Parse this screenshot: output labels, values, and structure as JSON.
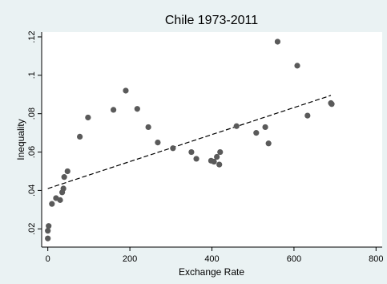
{
  "chart_data": {
    "type": "scatter",
    "title": "Chile 1973-2011",
    "xlabel": "Exchange Rate",
    "ylabel": "Inequality",
    "xlim": [
      -15,
      815
    ],
    "ylim": [
      0.0105,
      0.1225
    ],
    "xticks": [
      0,
      200,
      400,
      600,
      800
    ],
    "xtick_labels": [
      "0",
      "200",
      "400",
      "600",
      "800"
    ],
    "yticks": [
      0.02,
      0.04,
      0.06,
      0.08,
      0.1,
      0.12
    ],
    "ytick_labels": [
      ".02",
      ".04",
      ".06",
      ".08",
      ".1",
      ".12"
    ],
    "grid": false,
    "legend": "none",
    "colors": {
      "background": "#eaf2f3",
      "plot_background": "#ffffff",
      "points": "#5a5a5a",
      "fit_line": "#000000"
    },
    "points": [
      {
        "x": 0,
        "y": 0.015
      },
      {
        "x": 0,
        "y": 0.019
      },
      {
        "x": 2,
        "y": 0.0215
      },
      {
        "x": 10,
        "y": 0.033
      },
      {
        "x": 20,
        "y": 0.036
      },
      {
        "x": 30,
        "y": 0.035
      },
      {
        "x": 35,
        "y": 0.039
      },
      {
        "x": 38,
        "y": 0.041
      },
      {
        "x": 40,
        "y": 0.047
      },
      {
        "x": 48,
        "y": 0.05
      },
      {
        "x": 78,
        "y": 0.068
      },
      {
        "x": 98,
        "y": 0.078
      },
      {
        "x": 160,
        "y": 0.082
      },
      {
        "x": 190,
        "y": 0.092
      },
      {
        "x": 218,
        "y": 0.0825
      },
      {
        "x": 245,
        "y": 0.073
      },
      {
        "x": 268,
        "y": 0.065
      },
      {
        "x": 305,
        "y": 0.062
      },
      {
        "x": 350,
        "y": 0.06
      },
      {
        "x": 362,
        "y": 0.0565
      },
      {
        "x": 398,
        "y": 0.0555
      },
      {
        "x": 405,
        "y": 0.055
      },
      {
        "x": 412,
        "y": 0.0575
      },
      {
        "x": 418,
        "y": 0.0535
      },
      {
        "x": 420,
        "y": 0.06
      },
      {
        "x": 460,
        "y": 0.0735
      },
      {
        "x": 508,
        "y": 0.07
      },
      {
        "x": 530,
        "y": 0.073
      },
      {
        "x": 538,
        "y": 0.0645
      },
      {
        "x": 560,
        "y": 0.1175
      },
      {
        "x": 608,
        "y": 0.105
      },
      {
        "x": 633,
        "y": 0.079
      },
      {
        "x": 690,
        "y": 0.0855
      },
      {
        "x": 692,
        "y": 0.085
      }
    ],
    "fit_line": {
      "x1": 0,
      "y1": 0.041,
      "x2": 690,
      "y2": 0.0895,
      "style": "dashed"
    }
  }
}
